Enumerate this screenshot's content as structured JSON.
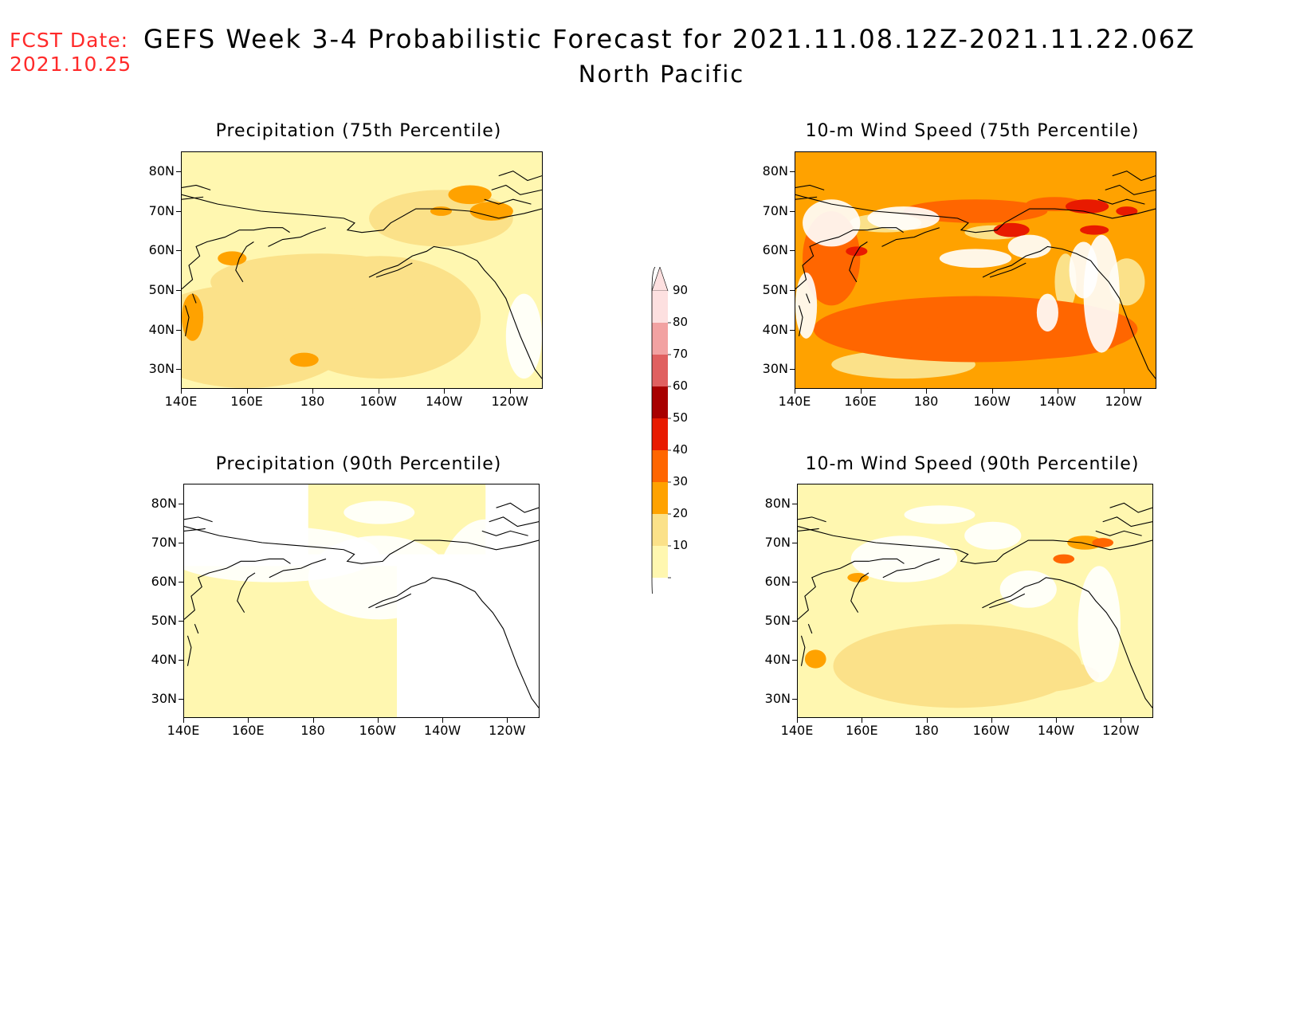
{
  "header": {
    "fcst_label": "FCST Date:",
    "fcst_date": "2021.10.25",
    "title": "GEFS Week 3-4 Probabilistic Forecast for 2021.11.08.12Z-2021.11.22.06Z",
    "region": "North Pacific"
  },
  "panels": [
    {
      "title": "Precipitation (75th Percentile)"
    },
    {
      "title": "10-m Wind Speed (75th Percentile)"
    },
    {
      "title": "Precipitation (90th Percentile)"
    },
    {
      "title": "10-m Wind Speed (90th Percentile)"
    }
  ],
  "axes": {
    "lat_labels": [
      "80N",
      "70N",
      "60N",
      "50N",
      "40N",
      "30N"
    ],
    "lon_labels": [
      "140E",
      "160E",
      "180",
      "160W",
      "140W",
      "120W"
    ]
  },
  "colorbar": {
    "levels": [
      "10",
      "20",
      "30",
      "40",
      "50",
      "60",
      "70",
      "80",
      "90"
    ],
    "colors": [
      "#fff7b0",
      "#fbe189",
      "#ffa200",
      "#ff6600",
      "#e81a00",
      "#a80000",
      "#e06060",
      "#f2a2a2",
      "#fde0e0"
    ]
  }
}
